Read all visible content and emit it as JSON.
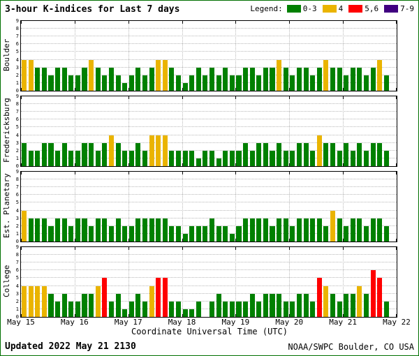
{
  "header": {
    "title": "3-hour K-indices for Last 7 days"
  },
  "legend": {
    "label": "Legend:",
    "items": [
      {
        "label": "0-3",
        "color": "#008000"
      },
      {
        "label": "4",
        "color": "#eab400"
      },
      {
        "label": "5,6",
        "color": "#ff0000"
      },
      {
        "label": "7-9",
        "color": "#400080"
      }
    ]
  },
  "footer": {
    "updated": "Updated 2022 May 21 2130",
    "credit": "NOAA/SWPC Boulder, CO USA"
  },
  "chart_data": {
    "type": "bar",
    "title": "3-hour K-indices for Last 7 days",
    "xlabel": "Coordinate Universal Time (UTC)",
    "ylim": [
      0,
      9
    ],
    "grid": true,
    "legend_position": "top-right",
    "x_tick_labels": [
      "May 15",
      "May 16",
      "May 17",
      "May 18",
      "May 19",
      "May 20",
      "May 21",
      "May 22"
    ],
    "bars_per_day": 8,
    "interval_hours": 3,
    "color_bins": [
      {
        "max": 3,
        "color": "#008000",
        "label": "0-3"
      },
      {
        "max": 4,
        "color": "#eab400",
        "label": "4"
      },
      {
        "max": 6,
        "color": "#ff0000",
        "label": "5,6"
      },
      {
        "max": 9,
        "color": "#400080",
        "label": "7-9"
      }
    ],
    "series": [
      {
        "name": "Boulder",
        "values": [
          4,
          4,
          3,
          3,
          2,
          3,
          3,
          2,
          2,
          3,
          4,
          3,
          2,
          3,
          2,
          1,
          2,
          3,
          2,
          3,
          4,
          4,
          3,
          2,
          1,
          2,
          3,
          2,
          3,
          2,
          3,
          2,
          2,
          3,
          3,
          2,
          3,
          3,
          4,
          3,
          2,
          3,
          3,
          2,
          3,
          4,
          3,
          3,
          2,
          3,
          3,
          2,
          3,
          4,
          2
        ]
      },
      {
        "name": "Fredericksburg",
        "values": [
          3,
          2,
          2,
          3,
          3,
          2,
          3,
          2,
          2,
          3,
          3,
          2,
          3,
          4,
          3,
          2,
          2,
          3,
          2,
          4,
          4,
          4,
          2,
          2,
          2,
          2,
          1,
          2,
          2,
          1,
          2,
          2,
          2,
          3,
          2,
          3,
          3,
          2,
          3,
          2,
          2,
          3,
          3,
          2,
          4,
          3,
          3,
          2,
          3,
          2,
          3,
          2,
          3,
          3,
          2
        ]
      },
      {
        "name": "Est. Planetary",
        "values": [
          4,
          3,
          3,
          3,
          2,
          3,
          3,
          2,
          3,
          3,
          2,
          3,
          3,
          2,
          3,
          2,
          2,
          3,
          3,
          3,
          3,
          3,
          2,
          2,
          1,
          2,
          2,
          2,
          3,
          2,
          2,
          1,
          2,
          3,
          3,
          3,
          3,
          2,
          3,
          3,
          2,
          3,
          3,
          3,
          3,
          2,
          4,
          3,
          2,
          3,
          3,
          2,
          3,
          3,
          2
        ]
      },
      {
        "name": "College",
        "values": [
          4,
          4,
          4,
          4,
          3,
          2,
          3,
          2,
          2,
          3,
          3,
          4,
          5,
          2,
          3,
          1,
          2,
          3,
          2,
          4,
          5,
          5,
          2,
          2,
          1,
          1,
          2,
          0,
          2,
          3,
          2,
          2,
          2,
          2,
          3,
          2,
          3,
          3,
          3,
          2,
          2,
          3,
          3,
          2,
          5,
          4,
          3,
          2,
          3,
          3,
          4,
          3,
          6,
          5,
          2
        ]
      }
    ]
  }
}
